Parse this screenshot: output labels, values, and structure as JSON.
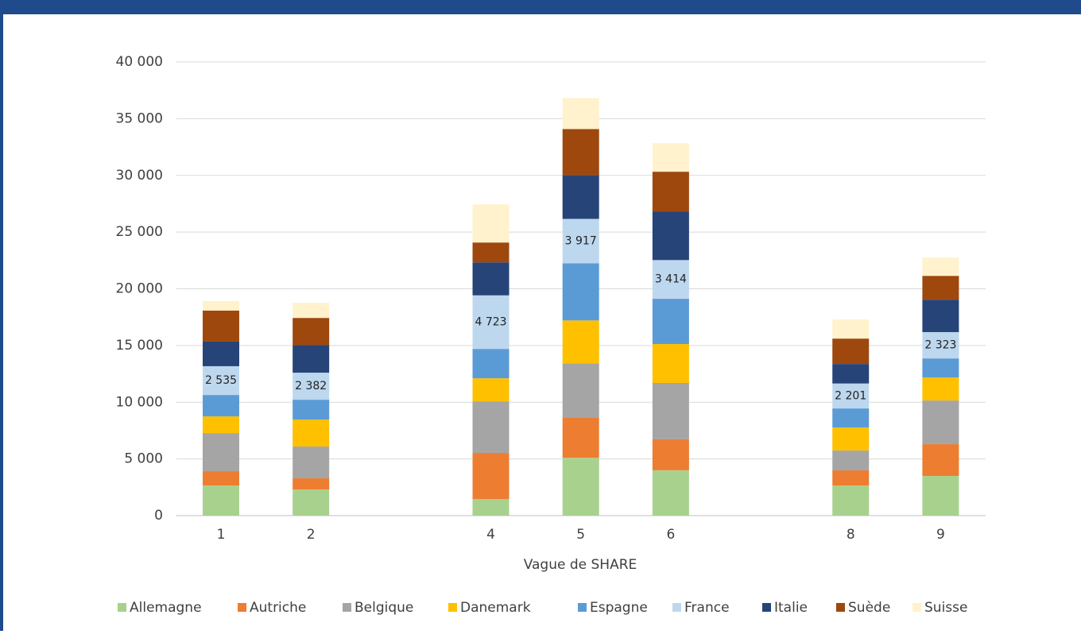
{
  "chart_data": {
    "type": "bar",
    "stacked": true,
    "x_label": "Vague de SHARE",
    "categories": [
      "1",
      "2",
      null,
      "4",
      "5",
      "6",
      null,
      "8",
      "9"
    ],
    "series": [
      {
        "name": "Allemagne",
        "color": "#a9d18e",
        "values": [
          2650,
          2300,
          null,
          1450,
          5100,
          4000,
          null,
          2650,
          3500
        ]
      },
      {
        "name": "Autriche",
        "color": "#ed7d31",
        "values": [
          1270,
          990,
          null,
          4080,
          3570,
          2730,
          null,
          1340,
          2800
        ]
      },
      {
        "name": "Belgique",
        "color": "#a5a5a5",
        "values": [
          3360,
          2800,
          null,
          4550,
          4760,
          4970,
          null,
          1750,
          3850
        ]
      },
      {
        "name": "Danemark",
        "color": "#ffc000",
        "values": [
          1470,
          2380,
          null,
          2030,
          3780,
          3430,
          null,
          2030,
          2030
        ]
      },
      {
        "name": "Espagne",
        "color": "#5b9bd5",
        "values": [
          1890,
          1750,
          null,
          2590,
          5040,
          3990,
          null,
          1680,
          1680
        ]
      },
      {
        "name": "France",
        "color": "#bdd7ee",
        "values": [
          2535,
          2382,
          null,
          4723,
          3917,
          3414,
          null,
          2201,
          2323
        ],
        "value_labels": [
          "2 535",
          "2 382",
          null,
          "4 723",
          "3 917",
          "3 414",
          null,
          "2 201",
          "2 323"
        ]
      },
      {
        "name": "Italie",
        "color": "#264478",
        "values": [
          2170,
          2450,
          null,
          2910,
          3860,
          4290,
          null,
          1720,
          2860
        ]
      },
      {
        "name": "Suède",
        "color": "#9e480e",
        "values": [
          2730,
          2380,
          null,
          1750,
          4060,
          3500,
          null,
          2240,
          2100
        ]
      },
      {
        "name": "Suisse",
        "color": "#fff2cc",
        "values": [
          840,
          1330,
          null,
          3360,
          2730,
          2520,
          null,
          1680,
          1610
        ]
      }
    ],
    "ylim": [
      0,
      40000
    ],
    "yticks": [
      0,
      {
        "value": 5000,
        "label": "5 000"
      },
      {
        "value": 10000,
        "label": "10 000"
      },
      {
        "value": 15000,
        "label": "15 000"
      },
      {
        "value": 20000,
        "label": "20 000"
      },
      {
        "value": 25000,
        "label": "25 000"
      },
      {
        "value": 30000,
        "label": "30 000"
      },
      {
        "value": 35000,
        "label": "35 000"
      },
      {
        "value": 40000,
        "label": "40 000"
      }
    ],
    "grid": true,
    "legend": "bottom"
  }
}
